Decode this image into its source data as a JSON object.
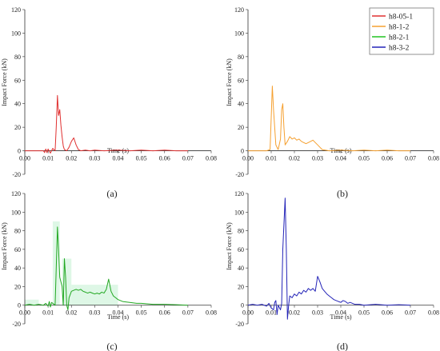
{
  "legend": {
    "placement": "top-right",
    "entries": [
      {
        "label": "h8-05-1",
        "color": "#e03030"
      },
      {
        "label": "h8-1-2",
        "color": "#f5a030"
      },
      {
        "label": "h8-2-1",
        "color": "#22c422"
      },
      {
        "label": "h8-3-2",
        "color": "#2424b8"
      }
    ]
  },
  "chart_data": [
    {
      "type": "line",
      "panel_label": "(a)",
      "xlabel": "Time (s)",
      "ylabel": "Impact Force (kN)",
      "xlim": [
        0,
        0.08
      ],
      "ylim": [
        -20,
        120
      ],
      "xticks": [
        "0.00",
        "0.01",
        "0.02",
        "0.03",
        "0.04",
        "0.05",
        "0.06",
        "0.07",
        "0.08"
      ],
      "yticks": [
        "-20",
        "0",
        "20",
        "40",
        "60",
        "80",
        "100",
        "120"
      ],
      "grid": false,
      "series": [
        {
          "color": "#e03030",
          "x": [
            0.0,
            0.006,
            0.008,
            0.0085,
            0.009,
            0.0095,
            0.01,
            0.011,
            0.012,
            0.013,
            0.0135,
            0.014,
            0.0145,
            0.015,
            0.0155,
            0.016,
            0.0165,
            0.017,
            0.018,
            0.019,
            0.02,
            0.021,
            0.022,
            0.023,
            0.024,
            0.026,
            0.028,
            0.03,
            0.034,
            0.04,
            0.045,
            0.05,
            0.055,
            0.06,
            0.065,
            0.07
          ],
          "y": [
            0,
            0,
            0,
            -1.5,
            1.5,
            -1.5,
            1.5,
            -2,
            2,
            0,
            20,
            47,
            30,
            35,
            22,
            12,
            4,
            1,
            0,
            3,
            8,
            11,
            5,
            1,
            0,
            0.5,
            0,
            0.5,
            0,
            0.5,
            0,
            0.5,
            0,
            0.5,
            0,
            0
          ]
        }
      ]
    },
    {
      "type": "line",
      "panel_label": "(b)",
      "xlabel": "Time (s)",
      "ylabel": "Impact Force (kN)",
      "xlim": [
        0,
        0.08
      ],
      "ylim": [
        -20,
        120
      ],
      "xticks": [
        "0.00",
        "0.01",
        "0.02",
        "0.03",
        "0.04",
        "0.05",
        "0.06",
        "0.07",
        "0.08"
      ],
      "yticks": [
        "-20",
        "0",
        "20",
        "40",
        "60",
        "80",
        "100",
        "120"
      ],
      "grid": false,
      "series": [
        {
          "color": "#f5a030",
          "x": [
            0.0,
            0.008,
            0.0095,
            0.0105,
            0.011,
            0.012,
            0.013,
            0.014,
            0.0145,
            0.015,
            0.0155,
            0.016,
            0.017,
            0.018,
            0.019,
            0.02,
            0.021,
            0.022,
            0.023,
            0.024,
            0.025,
            0.026,
            0.027,
            0.028,
            0.029,
            0.03,
            0.031,
            0.032,
            0.035,
            0.04,
            0.045,
            0.05,
            0.055,
            0.06,
            0.065,
            0.07
          ],
          "y": [
            0,
            0,
            1,
            55,
            35,
            5,
            1,
            10,
            35,
            40,
            20,
            5,
            8,
            12,
            10,
            11,
            9,
            10,
            8,
            7,
            6,
            7,
            8,
            9,
            7,
            5,
            3,
            1,
            0,
            0.5,
            0,
            0.5,
            0,
            0.5,
            0,
            0
          ]
        }
      ]
    },
    {
      "type": "line",
      "panel_label": "(c)",
      "xlabel": "Time (s)",
      "ylabel": "Impact Force (kN)",
      "xlim": [
        0,
        0.08
      ],
      "ylim": [
        -20,
        120
      ],
      "xticks": [
        "0.00",
        "0.01",
        "0.02",
        "0.03",
        "0.04",
        "0.05",
        "0.06",
        "0.07",
        "0.08"
      ],
      "yticks": [
        "-20",
        "0",
        "20",
        "40",
        "60",
        "80",
        "100",
        "120"
      ],
      "grid": false,
      "series": [
        {
          "color": "#22a822",
          "x": [
            0.0,
            0.002,
            0.004,
            0.006,
            0.008,
            0.009,
            0.01,
            0.0105,
            0.011,
            0.0115,
            0.012,
            0.013,
            0.0135,
            0.014,
            0.0145,
            0.015,
            0.016,
            0.0165,
            0.017,
            0.0175,
            0.018,
            0.0185,
            0.019,
            0.02,
            0.021,
            0.022,
            0.023,
            0.024,
            0.025,
            0.026,
            0.027,
            0.028,
            0.029,
            0.03,
            0.031,
            0.032,
            0.033,
            0.034,
            0.035,
            0.036,
            0.037,
            0.038,
            0.039,
            0.04,
            0.042,
            0.045,
            0.048,
            0.05,
            0.055,
            0.06,
            0.065,
            0.07
          ],
          "y": [
            0,
            1,
            0,
            1,
            0,
            2,
            -1,
            4,
            -2,
            3,
            2,
            0,
            40,
            84,
            60,
            30,
            20,
            0,
            50,
            30,
            0,
            -5,
            8,
            15,
            16,
            17,
            16,
            17,
            15,
            14,
            13,
            14,
            13,
            12,
            13,
            12,
            14,
            13,
            17,
            28,
            15,
            10,
            8,
            6,
            4,
            3,
            2,
            2,
            1,
            1,
            0.5,
            0
          ]
        }
      ]
    },
    {
      "type": "line",
      "panel_label": "(d)",
      "xlabel": "Time (s)",
      "ylabel": "Impact Force (kN)",
      "xlim": [
        0,
        0.08
      ],
      "ylim": [
        -20,
        120
      ],
      "xticks": [
        "0.00",
        "0.01",
        "0.02",
        "0.03",
        "0.04",
        "0.05",
        "0.06",
        "0.07",
        "0.08"
      ],
      "yticks": [
        "-20",
        "0",
        "20",
        "40",
        "60",
        "80",
        "100",
        "120"
      ],
      "grid": false,
      "series": [
        {
          "color": "#2424b8",
          "x": [
            0.0,
            0.002,
            0.004,
            0.006,
            0.008,
            0.009,
            0.01,
            0.011,
            0.0115,
            0.012,
            0.0125,
            0.013,
            0.014,
            0.0145,
            0.015,
            0.016,
            0.0165,
            0.017,
            0.0175,
            0.018,
            0.019,
            0.02,
            0.021,
            0.022,
            0.023,
            0.024,
            0.025,
            0.026,
            0.027,
            0.028,
            0.029,
            0.03,
            0.031,
            0.032,
            0.033,
            0.034,
            0.035,
            0.036,
            0.037,
            0.038,
            0.039,
            0.04,
            0.041,
            0.042,
            0.043,
            0.044,
            0.046,
            0.048,
            0.05,
            0.055,
            0.06,
            0.065,
            0.07
          ],
          "y": [
            0,
            1,
            0,
            1,
            -1,
            2,
            -3,
            -5,
            3,
            5,
            -10,
            0,
            -5,
            2,
            60,
            115,
            60,
            -15,
            0,
            10,
            8,
            12,
            10,
            14,
            12,
            16,
            14,
            18,
            16,
            18,
            15,
            31,
            25,
            18,
            15,
            12,
            10,
            8,
            6,
            5,
            4,
            3,
            5,
            4,
            2,
            3,
            1,
            1,
            0,
            1,
            0,
            0.5,
            0
          ]
        }
      ]
    }
  ]
}
